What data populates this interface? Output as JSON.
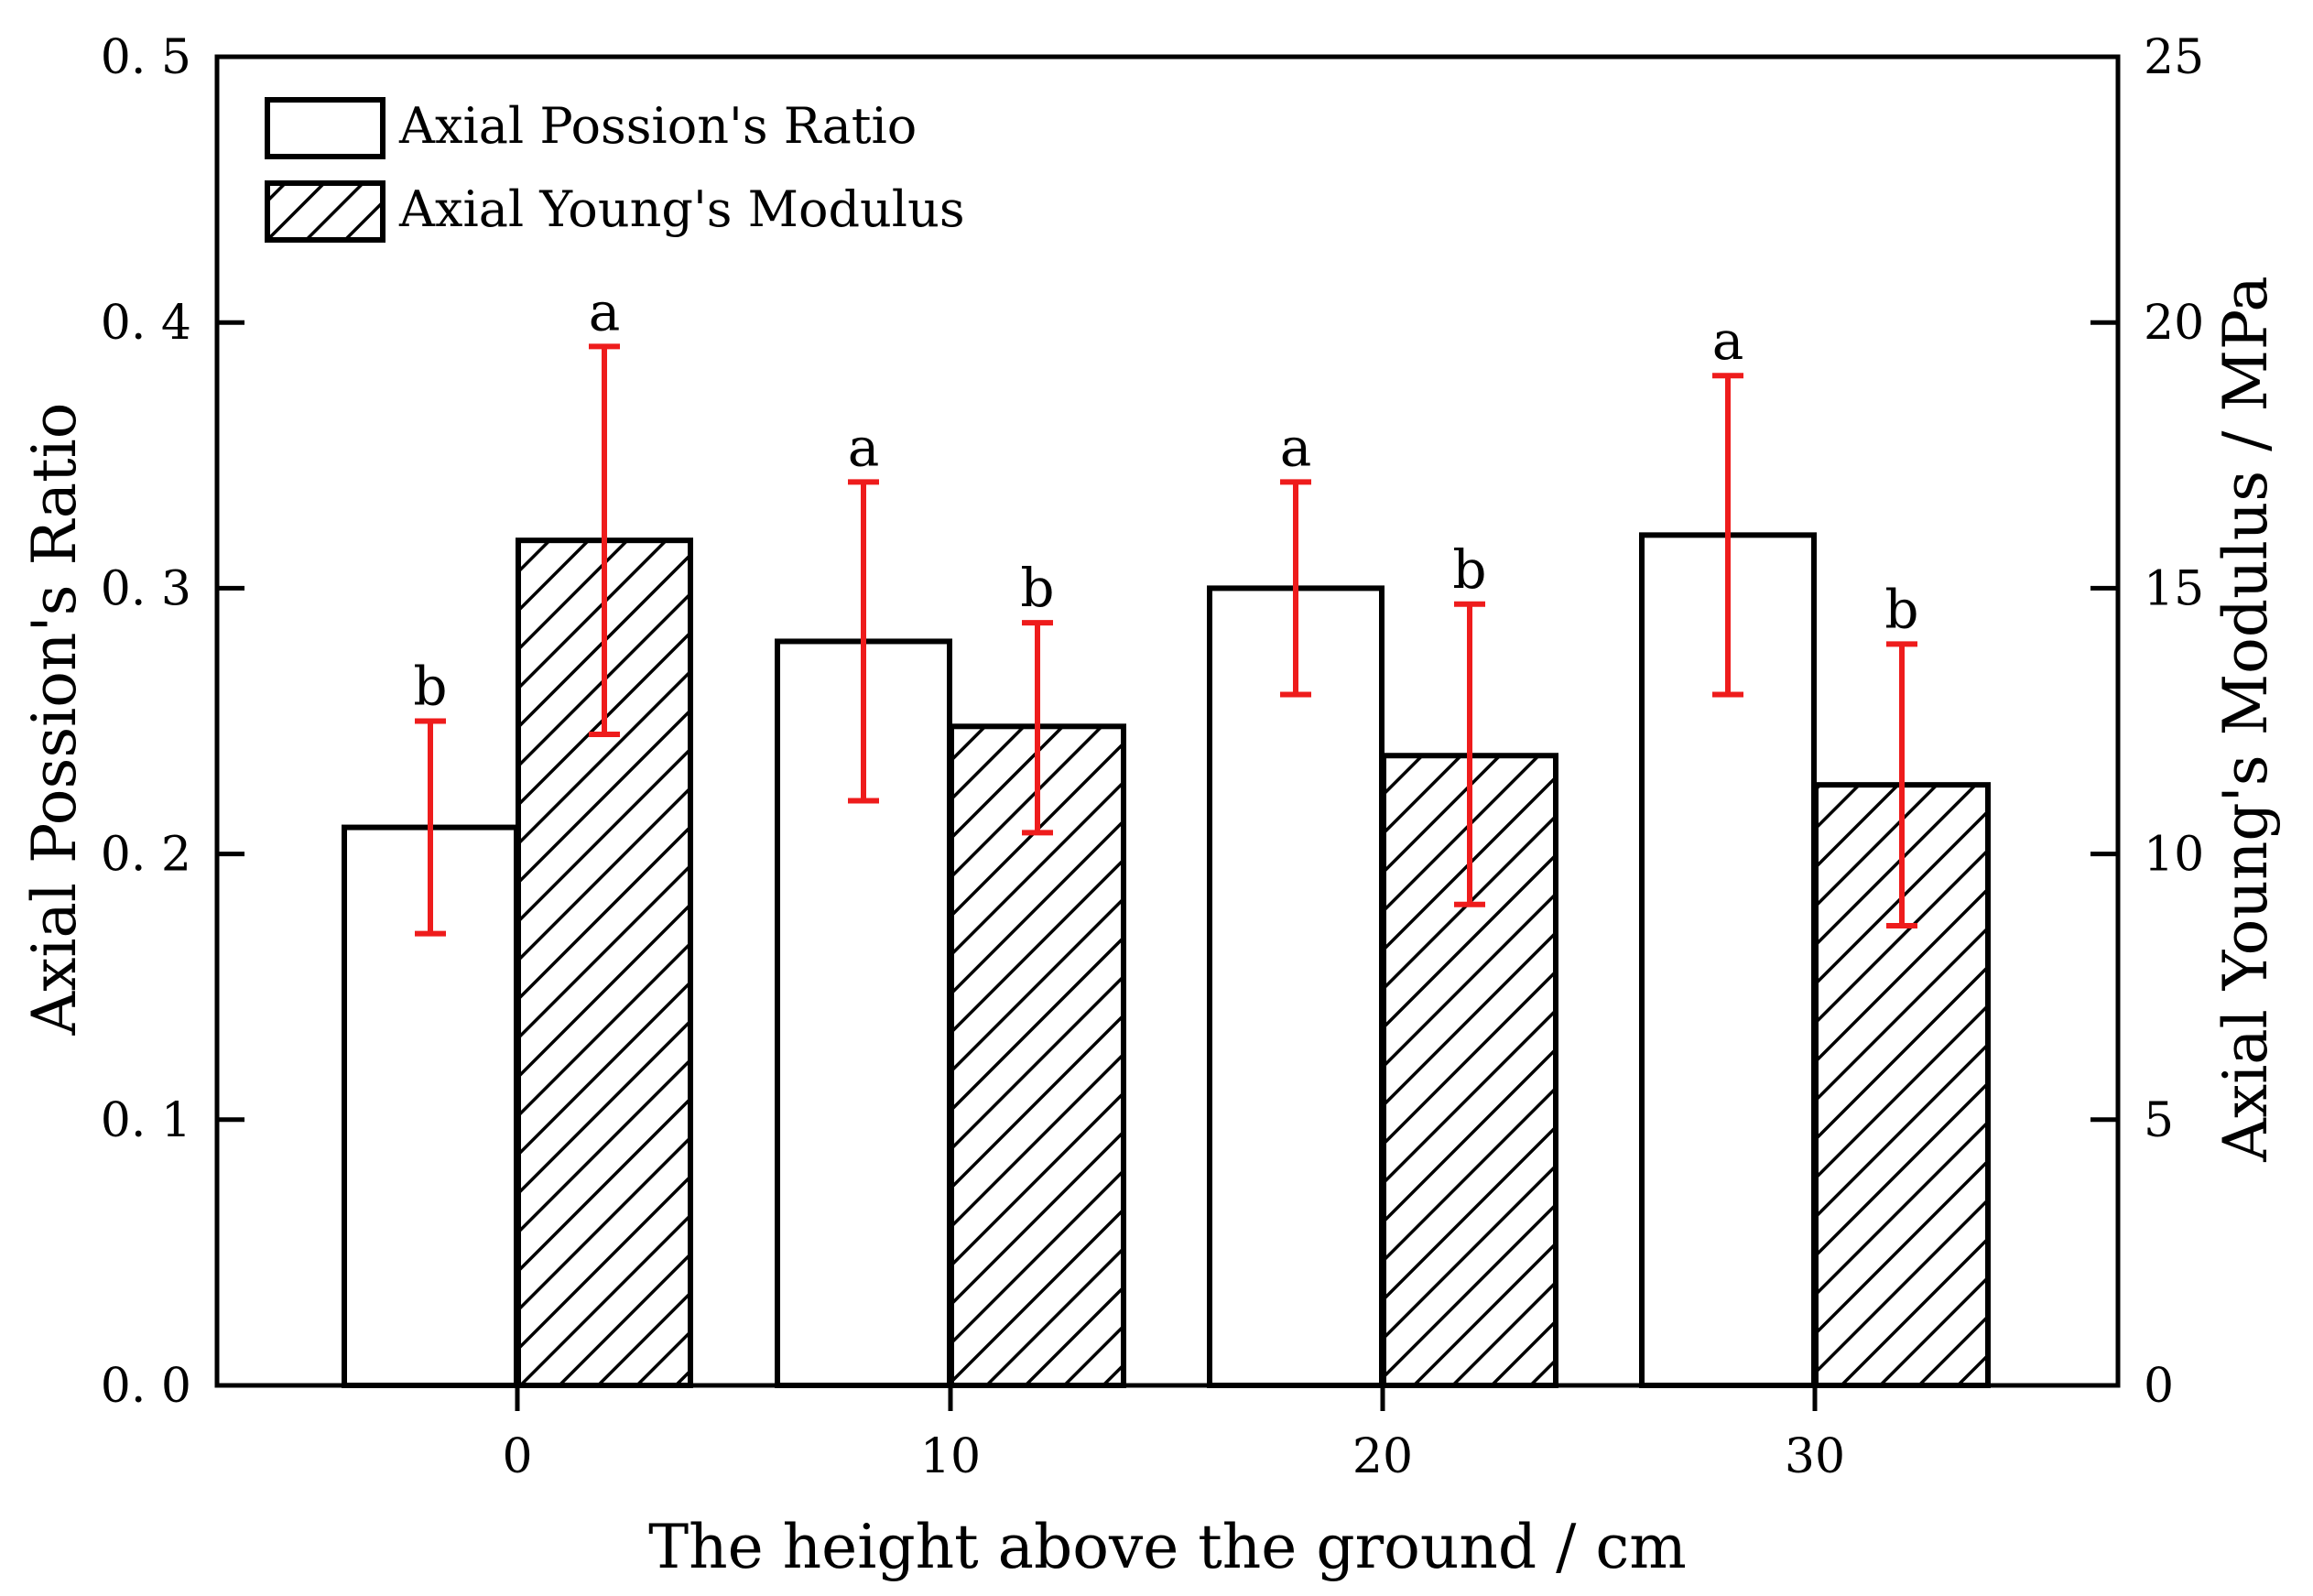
{
  "chart_data": {
    "type": "bar",
    "title": "",
    "xlabel": "The height above the ground / cm",
    "ylabel_left": "Axial Possion's Ratio",
    "ylabel_right": "Axial Young's Modulus / MPa",
    "categories": [
      "0",
      "10",
      "20",
      "30"
    ],
    "ylim_left": [
      0,
      0.5
    ],
    "ylim_right": [
      0,
      25
    ],
    "yticks_left": [
      "0. 0",
      "0. 1",
      "0. 2",
      "0. 3",
      "0. 4",
      "0. 5"
    ],
    "yticks_right": [
      "0",
      "5",
      "10",
      "15",
      "20",
      "25"
    ],
    "legend_position": "top-left",
    "series": [
      {
        "name": "Axial Possion's Ratio",
        "axis": "left",
        "fill": "white",
        "values": [
          0.21,
          0.28,
          0.3,
          0.32
        ],
        "error_low": [
          0.17,
          0.22,
          0.26,
          0.26
        ],
        "error_high": [
          0.25,
          0.34,
          0.34,
          0.38
        ],
        "significance": [
          "b",
          "a",
          "a",
          "a"
        ]
      },
      {
        "name": "Axial Young's Modulus",
        "axis": "right",
        "fill": "hatched",
        "values": [
          15.9,
          12.4,
          11.85,
          11.3
        ],
        "error_low": [
          12.25,
          10.4,
          9.05,
          8.65
        ],
        "error_high": [
          19.55,
          14.35,
          14.7,
          13.95
        ],
        "significance": [
          "a",
          "b",
          "b",
          "b"
        ]
      }
    ],
    "colors": {
      "bar_outline": "#000000",
      "error_bar": "#ee1c1c",
      "axis": "#000000"
    }
  }
}
